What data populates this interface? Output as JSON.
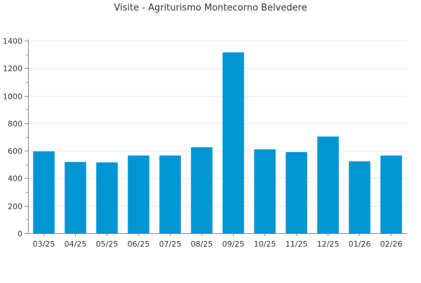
{
  "chart_data": {
    "type": "bar",
    "title": "Visite - Agriturismo Montecorno Belvedere",
    "xlabel": "",
    "ylabel": "",
    "categories": [
      "03/25",
      "04/25",
      "05/25",
      "06/25",
      "07/25",
      "08/25",
      "09/25",
      "10/25",
      "11/25",
      "12/25",
      "01/26",
      "02/26"
    ],
    "values": [
      595,
      518,
      515,
      565,
      565,
      625,
      1315,
      610,
      590,
      703,
      523,
      565
    ],
    "ylim": [
      0,
      1400
    ],
    "yticks": [
      0,
      200,
      400,
      600,
      800,
      1000,
      1200,
      1400
    ],
    "grid": true,
    "legend": "none",
    "colors": {
      "bar": "#0095d5",
      "grid": "#e6e6e6",
      "axis": "#888888",
      "text": "#333333"
    }
  }
}
